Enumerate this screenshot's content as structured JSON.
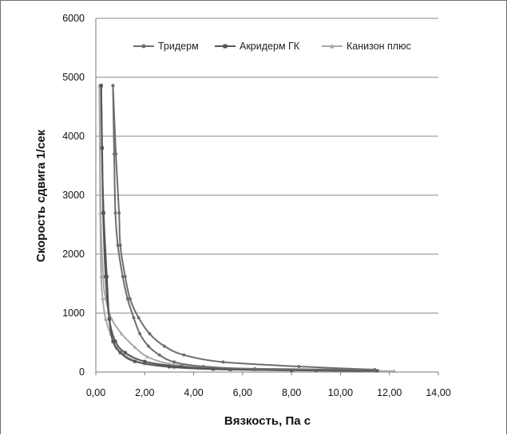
{
  "chart_data": {
    "type": "line",
    "title": "",
    "xlabel": "Вязкость, Па с",
    "ylabel": "Скорость сдвига 1/сек",
    "xlim": [
      0,
      14
    ],
    "ylim": [
      0,
      6000
    ],
    "x_ticks": [
      "0,00",
      "2,00",
      "4,00",
      "6,00",
      "8,00",
      "10,00",
      "12,00",
      "14,00"
    ],
    "y_ticks": [
      "0",
      "1000",
      "2000",
      "3000",
      "4000",
      "5000",
      "6000"
    ],
    "grid": "horizontal",
    "legend_position": "top-right",
    "series": [
      {
        "name": "Тридерм",
        "color": "#6e6e6e",
        "marker": "circle",
        "up": [
          [
            11.4,
            40
          ],
          [
            8.3,
            95
          ],
          [
            5.2,
            170
          ],
          [
            3.6,
            290
          ],
          [
            2.8,
            440
          ],
          [
            2.2,
            650
          ],
          [
            1.75,
            920
          ],
          [
            1.4,
            1240
          ],
          [
            1.2,
            1620
          ],
          [
            1.0,
            2150
          ],
          [
            0.95,
            2700
          ],
          [
            0.82,
            3700
          ],
          [
            0.7,
            4860
          ]
        ],
        "down": [
          [
            0.7,
            4860
          ],
          [
            0.75,
            3700
          ],
          [
            0.8,
            2700
          ],
          [
            0.9,
            2150
          ],
          [
            1.1,
            1620
          ],
          [
            1.3,
            1240
          ],
          [
            1.55,
            920
          ],
          [
            1.8,
            650
          ],
          [
            2.15,
            440
          ],
          [
            2.6,
            290
          ],
          [
            3.2,
            170
          ],
          [
            4.4,
            95
          ],
          [
            6.5,
            55
          ],
          [
            11.4,
            40
          ]
        ]
      },
      {
        "name": "Акридерм ГК",
        "color": "#555555",
        "marker": "square",
        "up": [
          [
            11.5,
            20
          ],
          [
            8.0,
            30
          ],
          [
            4.8,
            50
          ],
          [
            3.0,
            90
          ],
          [
            1.6,
            180
          ],
          [
            1.0,
            330
          ],
          [
            0.7,
            520
          ],
          [
            0.55,
            900
          ],
          [
            0.45,
            1620
          ],
          [
            0.32,
            2700
          ],
          [
            0.25,
            3800
          ],
          [
            0.22,
            4860
          ]
        ],
        "down": [
          [
            0.22,
            4860
          ],
          [
            0.26,
            3800
          ],
          [
            0.3,
            2700
          ],
          [
            0.4,
            1620
          ],
          [
            0.55,
            900
          ],
          [
            0.8,
            520
          ],
          [
            1.2,
            330
          ],
          [
            2.0,
            180
          ],
          [
            3.5,
            90
          ],
          [
            5.5,
            50
          ],
          [
            9.0,
            30
          ],
          [
            11.5,
            20
          ]
        ]
      },
      {
        "name": "Канизон плюс",
        "color": "#a8a8a8",
        "marker": "triangle",
        "up": [
          [
            12.2,
            15
          ],
          [
            9.5,
            25
          ],
          [
            6.5,
            40
          ],
          [
            4.6,
            80
          ],
          [
            3.0,
            140
          ],
          [
            2.1,
            260
          ],
          [
            1.6,
            420
          ],
          [
            1.05,
            650
          ],
          [
            0.65,
            900
          ],
          [
            0.4,
            1250
          ],
          [
            0.3,
            1620
          ],
          [
            0.2,
            2700
          ],
          [
            0.15,
            4860
          ]
        ],
        "down": [
          [
            0.15,
            4860
          ],
          [
            0.18,
            2700
          ],
          [
            0.22,
            1620
          ],
          [
            0.28,
            1250
          ],
          [
            0.4,
            900
          ],
          [
            0.6,
            650
          ],
          [
            0.85,
            420
          ],
          [
            1.3,
            260
          ],
          [
            2.0,
            140
          ],
          [
            3.2,
            80
          ],
          [
            5.5,
            40
          ],
          [
            9.0,
            25
          ],
          [
            12.2,
            15
          ]
        ]
      }
    ]
  }
}
